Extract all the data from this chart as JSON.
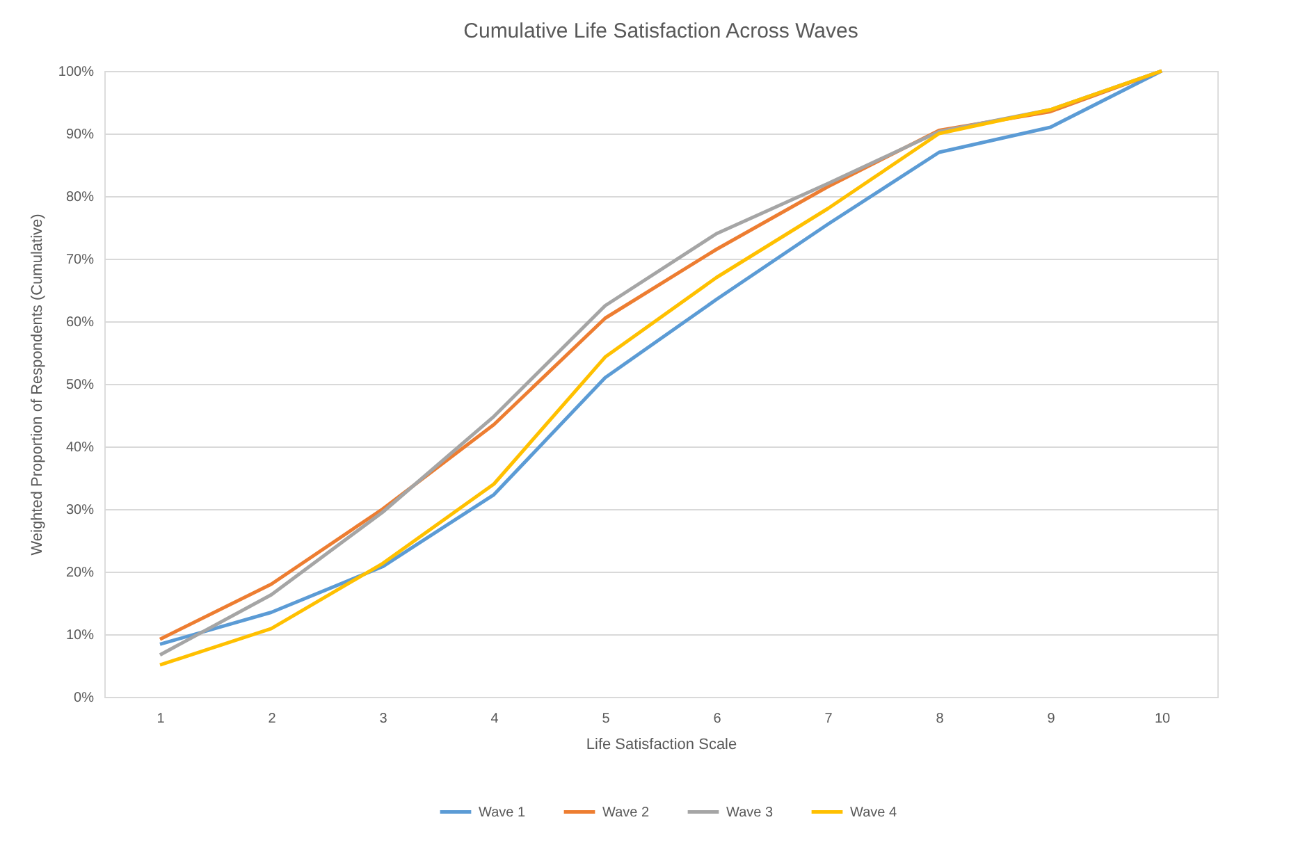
{
  "chart_data": {
    "type": "line",
    "title": "Cumulative Life Satisfaction Across Waves",
    "xlabel": "Life Satisfaction Scale",
    "ylabel": "Weighted Proportion of Respondents (Cumulative)",
    "categories": [
      "1",
      "2",
      "3",
      "4",
      "5",
      "6",
      "7",
      "8",
      "9",
      "10"
    ],
    "series": [
      {
        "name": "Wave 1",
        "color": "#5b9bd5",
        "values": [
          8.4,
          13.5,
          20.8,
          32.3,
          51,
          63.5,
          75.5,
          87,
          91,
          100
        ]
      },
      {
        "name": "Wave 2",
        "color": "#ed7d31",
        "values": [
          9.2,
          18,
          30,
          43.5,
          60.5,
          71.5,
          81.5,
          90.5,
          93.5,
          100
        ]
      },
      {
        "name": "Wave 3",
        "color": "#a5a5a5",
        "values": [
          6.7,
          16.3,
          29.5,
          44.8,
          62.5,
          74,
          82,
          90.3,
          93.8,
          100
        ]
      },
      {
        "name": "Wave 4",
        "color": "#ffc000",
        "values": [
          5.1,
          10.9,
          21.3,
          34,
          54.3,
          67,
          78,
          90,
          93.8,
          100
        ]
      }
    ],
    "ylim": [
      0,
      100
    ],
    "yticks": [
      {
        "value": 0,
        "label": "0%"
      },
      {
        "value": 10,
        "label": "10%"
      },
      {
        "value": 20,
        "label": "20%"
      },
      {
        "value": 30,
        "label": "30%"
      },
      {
        "value": 40,
        "label": "40%"
      },
      {
        "value": 50,
        "label": "50%"
      },
      {
        "value": 60,
        "label": "60%"
      },
      {
        "value": 70,
        "label": "70%"
      },
      {
        "value": 80,
        "label": "80%"
      },
      {
        "value": 90,
        "label": "90%"
      },
      {
        "value": 100,
        "label": "100%"
      }
    ],
    "grid": "y",
    "legend": "bottom",
    "marker": "none",
    "line_style": "solid"
  }
}
